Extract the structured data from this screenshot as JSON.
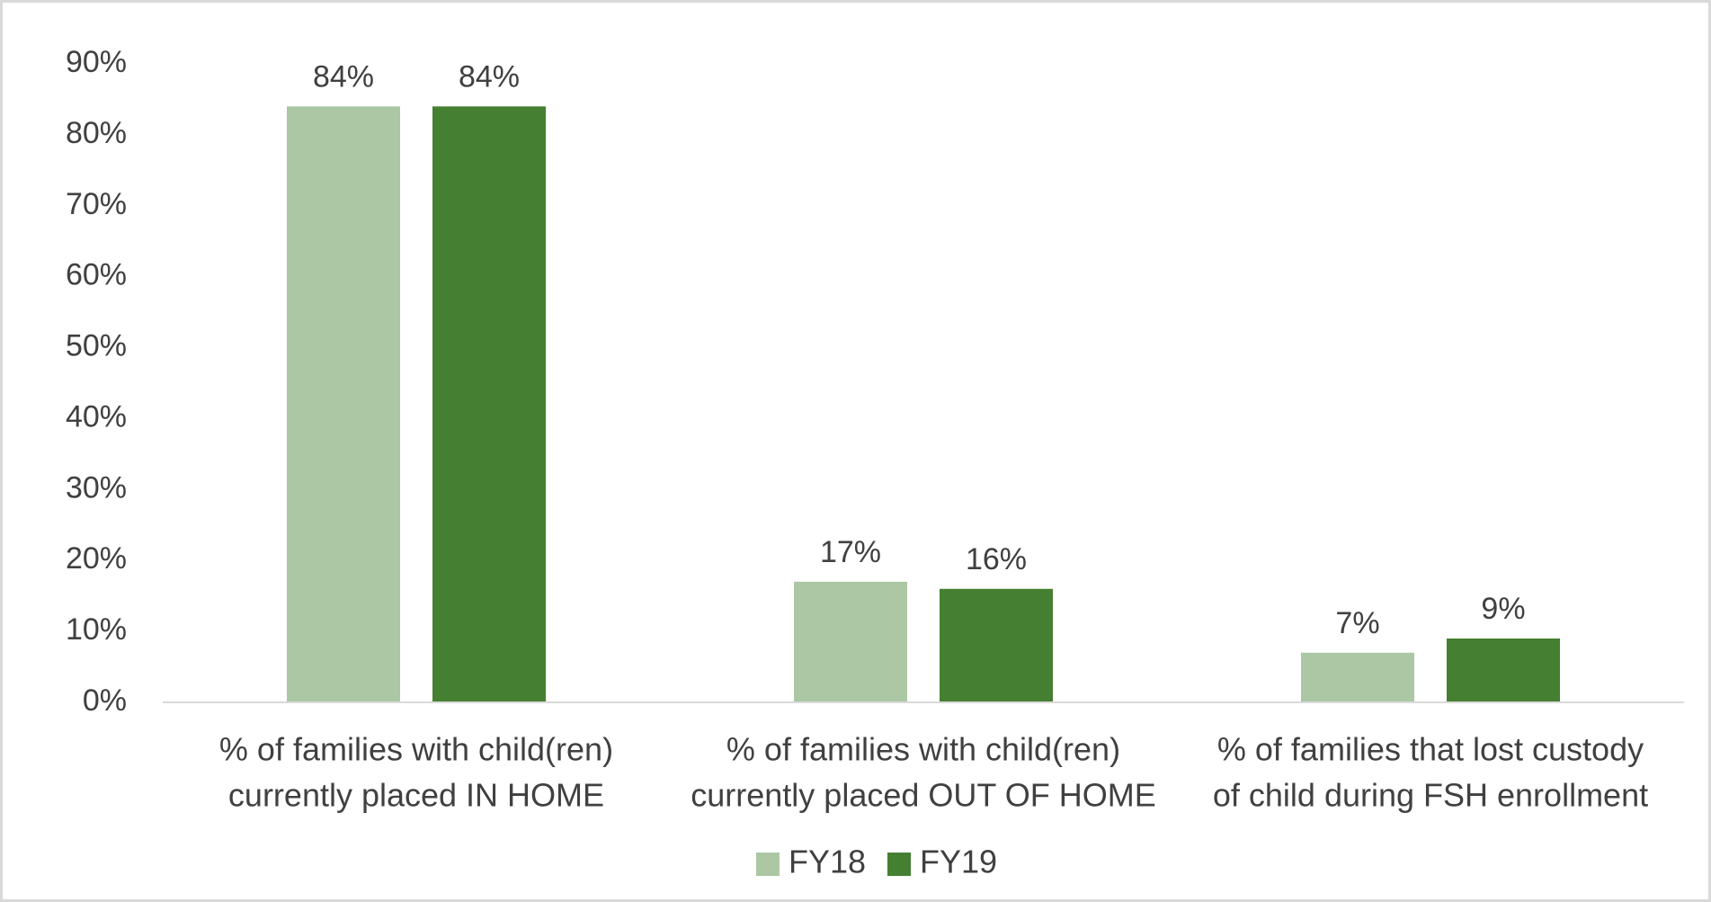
{
  "chart_data": {
    "type": "bar",
    "categories": [
      [
        "% of families with child(ren)",
        "currently placed IN HOME"
      ],
      [
        "% of families with child(ren)",
        "currently placed OUT OF HOME"
      ],
      [
        "% of families that lost custody",
        "of child during FSH enrollment"
      ]
    ],
    "series": [
      {
        "name": "FY18",
        "color": "#abc7a4",
        "values": [
          84,
          17,
          7
        ],
        "labels": [
          "84%",
          "17%",
          "7%"
        ]
      },
      {
        "name": "FY19",
        "color": "#457f31",
        "values": [
          84,
          16,
          9
        ],
        "labels": [
          "84%",
          "16%",
          "9%"
        ]
      }
    ],
    "ylim": [
      0,
      90
    ],
    "yticks": [
      0,
      10,
      20,
      30,
      40,
      50,
      60,
      70,
      80,
      90
    ],
    "ytick_labels": [
      "0%",
      "10%",
      "20%",
      "30%",
      "40%",
      "50%",
      "60%",
      "70%",
      "80%",
      "90%"
    ],
    "legend_position": "bottom",
    "grid": false,
    "axis_color": "#d9d9d9"
  }
}
